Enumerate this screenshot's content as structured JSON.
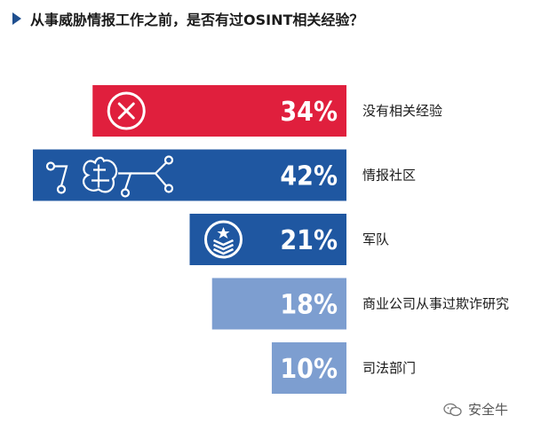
{
  "title": "从事威胁情报工作之前，是否有过OSINT相关经验？",
  "watermark": "安全牛",
  "chart_data": {
    "type": "bar",
    "orientation": "horizontal",
    "categories": [
      "没有相关经验",
      "情报社区",
      "军队",
      "商业公司从事过欺诈研究",
      "司法部门"
    ],
    "values": [
      34,
      42,
      21,
      18,
      10
    ],
    "value_suffix": "%",
    "colors": [
      "#e01f3d",
      "#1f57a1",
      "#1f57a1",
      "#7d9ed0",
      "#7d9ed0"
    ],
    "icons": [
      "x-circle-icon",
      "circuit-brain-icon",
      "military-badge-icon",
      null,
      null
    ],
    "xlim": [
      0,
      42
    ],
    "legend": "none",
    "grid": false
  }
}
